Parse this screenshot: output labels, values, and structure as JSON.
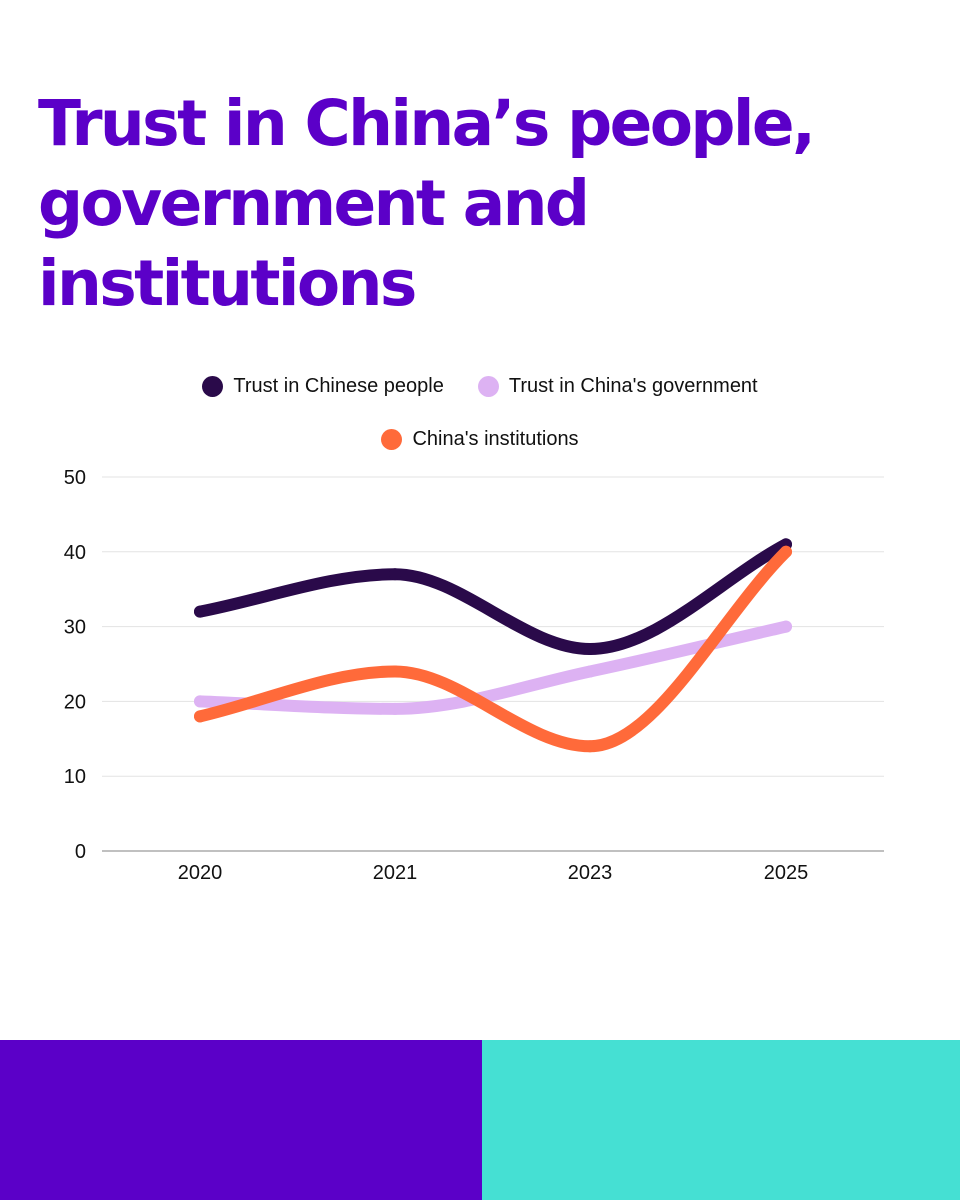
{
  "title": "Trust in China’s people, government and institutions",
  "colors": {
    "title": "#5b00c8",
    "footer_left": "#5b00c8",
    "footer_right": "#45e0d3",
    "grid": "#e3e3e3",
    "axis": "#9a9a9a"
  },
  "chart_data": {
    "type": "line",
    "categories": [
      "2020",
      "2021",
      "2023",
      "2025"
    ],
    "ylim": [
      0,
      50
    ],
    "yticks": [
      "0",
      "10",
      "20",
      "30",
      "40",
      "50"
    ],
    "grid": true,
    "legend_placement": "top-center",
    "series": [
      {
        "name": "Trust in Chinese people",
        "values": [
          32,
          37,
          27,
          41
        ],
        "color": "#2a0a4a"
      },
      {
        "name": "Trust in China's government",
        "values": [
          20,
          19,
          24,
          30
        ],
        "color": "#ddb2f3"
      },
      {
        "name": "China's institutions",
        "values": [
          18,
          24,
          14,
          40
        ],
        "color": "#ff6a3a"
      }
    ]
  }
}
